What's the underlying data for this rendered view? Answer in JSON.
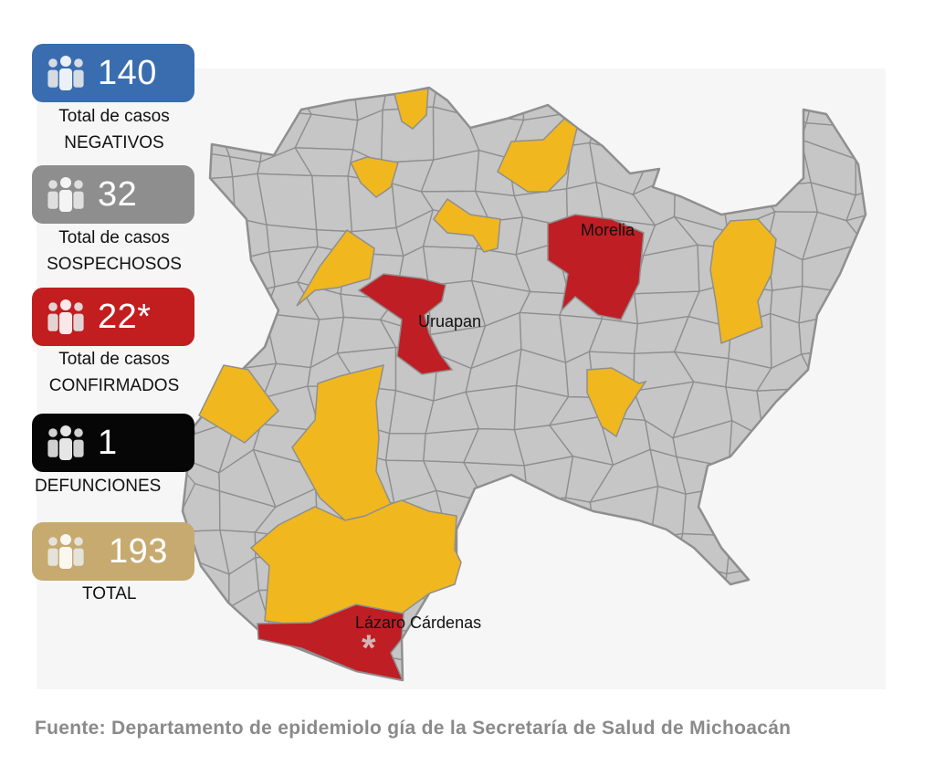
{
  "colors": {
    "neutral": "#c6c6c6",
    "suspect": "#f0b71f",
    "confirmed": "#bf1e24",
    "border": "#8f8f8f",
    "card_negative": "#3a6db0",
    "card_suspect": "#8e8e8e",
    "card_confirmed": "#c21d1f",
    "card_deaths": "#060606",
    "card_total": "#c7aa70"
  },
  "stats": {
    "negative": {
      "value": "140",
      "label_1": "Total de casos",
      "label_2": "NEGATIVOS",
      "icon": "people-group-icon"
    },
    "suspect": {
      "value": "32",
      "label_1": "Total de casos",
      "label_2": "SOSPECHOSOS",
      "icon": "people-group-icon"
    },
    "confirmed": {
      "value": "22*",
      "label_1": "Total de casos",
      "label_2": "CONFIRMADOS",
      "icon": "people-group-icon"
    },
    "deaths": {
      "value": "1",
      "label_1": "DEFUNCIONES",
      "icon": "people-group-icon"
    },
    "total": {
      "value": "193",
      "label_1": "TOTAL",
      "icon": "people-group-icon"
    }
  },
  "map": {
    "cities": {
      "morelia": "Morelia",
      "uruapan": "Uruapan",
      "lazaro": "Lázaro Cárdenas"
    },
    "asterisk": "*"
  },
  "source": "Fuente: Departamento de epidemiolo gía de la Secretaría de Salud de Michoacán"
}
